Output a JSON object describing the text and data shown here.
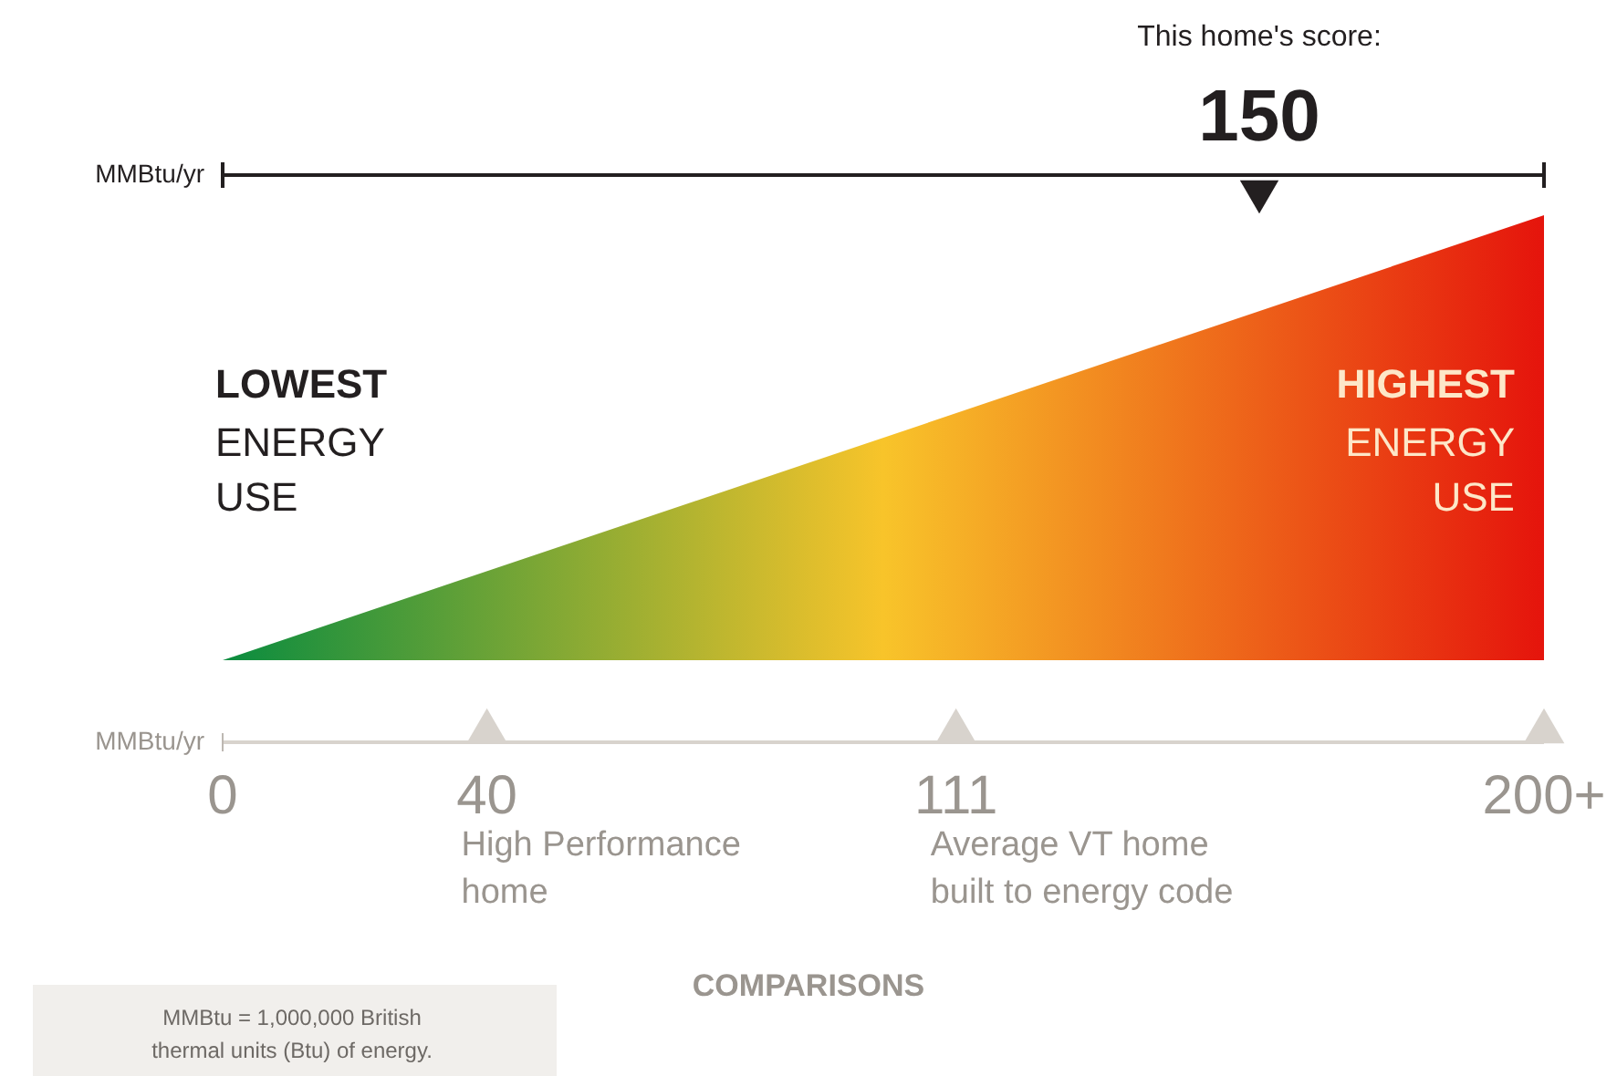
{
  "chart_data": {
    "type": "other",
    "categories": [
      null,
      null,
      null
    ],
    "values": [
      150,
      40,
      111
    ],
    "data_labels": true,
    "xlabel": "MMBtu/yr",
    "x2label": "MMBtu/yr",
    "annotations": [
      "This home's score:",
      "LOWEST\nENERGY\nUSE",
      "HIGHEST\nENERGY\nUSE",
      "High Performance\nhome",
      "Average VT home\nbuilt to energy code",
      "COMPARISONS",
      "MMBtu = 1,000,000 British\nthermal units (Btu) of energy.",
      "0",
      "200+"
    ]
  }
}
